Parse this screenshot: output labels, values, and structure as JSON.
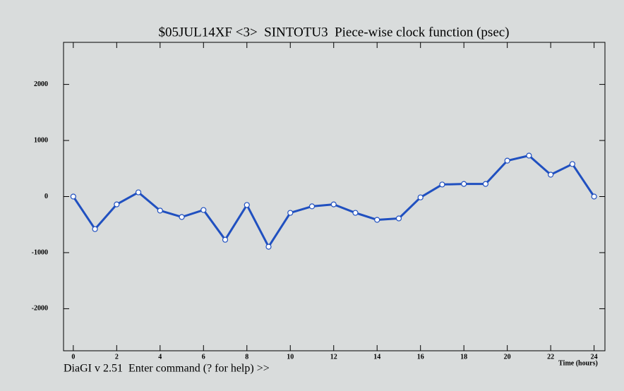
{
  "chart_data": {
    "type": "line",
    "title": "$05JUL14XF <3>  SINTOTU3  Piece-wise clock function (psec)",
    "x_label": "Time (hours)",
    "footer": "DiaGI v 2.51  Enter command (? for help) >>",
    "x": [
      0,
      1,
      2,
      3,
      4,
      5,
      6,
      7,
      8,
      9,
      10,
      11,
      12,
      13,
      14,
      15,
      16,
      17,
      18,
      19,
      20,
      21,
      22,
      23,
      24
    ],
    "series": [
      {
        "color": "#2050c0",
        "values": [
          0,
          -580,
          -140,
          75,
          -250,
          -365,
          -240,
          -770,
          -150,
          -895,
          -290,
          -175,
          -140,
          -290,
          -415,
          -390,
          -15,
          215,
          225,
          225,
          640,
          730,
          390,
          580,
          0
        ]
      }
    ],
    "xlim": [
      -0.45,
      24.5
    ],
    "xticks": [
      0,
      2,
      4,
      6,
      8,
      10,
      12,
      14,
      16,
      18,
      20,
      22,
      24
    ],
    "ylim": [
      -2750,
      2750
    ],
    "yticks": [
      -2000,
      -1000,
      0,
      1000,
      2000
    ]
  }
}
